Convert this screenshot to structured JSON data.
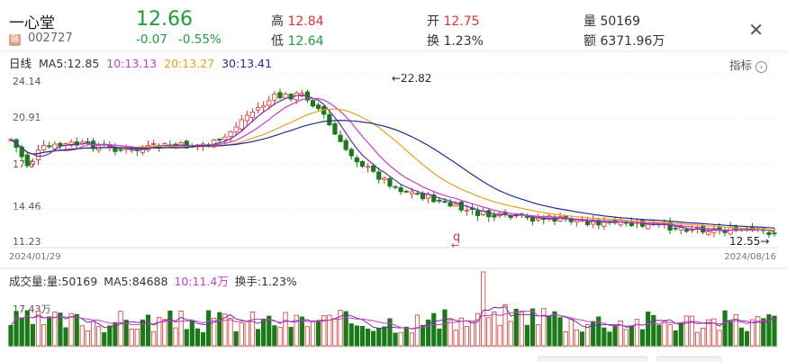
{
  "stock": {
    "name": "一心堂",
    "badge": "融",
    "code": "002727",
    "price": "12.66",
    "change": "-0.07",
    "change_pct": "-0.55%"
  },
  "quote": {
    "high_label": "高",
    "high_value": "12.84",
    "low_label": "低",
    "low_value": "12.64",
    "open_label": "开",
    "open_value": "12.75",
    "turnover_label": "换",
    "turnover_value": "1.23%",
    "volume_label": "量",
    "volume_value": "50169",
    "amount_label": "额",
    "amount_value": "6371.96万"
  },
  "close_glyph": "✕",
  "kline_header": {
    "period": "日线",
    "ma5": "MA5:12.85",
    "ma10": "10:13.13",
    "ma20": "20:13.27",
    "ma30": "30:13.41",
    "indicator_label": "指标",
    "indicator_icon": "‹"
  },
  "price_axis": [
    "24.14",
    "20.91",
    "17.6",
    "14.46",
    "11.23"
  ],
  "dates": {
    "start": "2024/01/29",
    "end": "2024/08/16"
  },
  "annotations": {
    "max": "←22.82",
    "min": "12.55→",
    "marker": "q",
    "marker_arrow": "←"
  },
  "volume_header": {
    "title": "成交量:",
    "vol": "量:50169",
    "ma5": "MA5:84688",
    "ma10": "10:11.4万",
    "turnover": "换手:1.23%"
  },
  "volume_axis": "17.43万",
  "colors": {
    "up": "#e0322f",
    "down": "#1a7a1a",
    "ma5": "#6b2fa0",
    "ma10": "#c83cc8",
    "ma20": "#e8a020",
    "ma30": "#1f2e8c"
  }
}
